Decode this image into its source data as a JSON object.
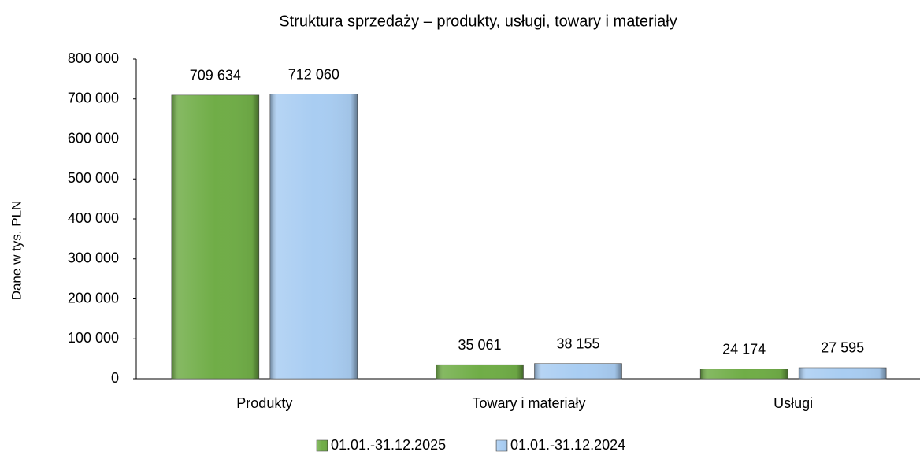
{
  "chart_data": {
    "type": "bar",
    "title": "Struktura sprzedaży – produkty, usługi, towary i materiały",
    "y_label": "Dane w tys. PLN",
    "categories": [
      "Produkty",
      "Towary i materiały",
      "Usługi"
    ],
    "series": [
      {
        "name": "01.01.-31.12.2025",
        "color": "#70ad47",
        "values": [
          709634,
          35061,
          24174
        ],
        "value_labels": [
          "709 634",
          "35 061",
          "24 174"
        ]
      },
      {
        "name": "01.01.-31.12.2024",
        "color": "#a9cdf2",
        "values": [
          712060,
          38155,
          27595
        ],
        "value_labels": [
          "712 060",
          "38 155",
          "27 595"
        ]
      }
    ],
    "ylim": [
      0,
      800000
    ],
    "yticks": [
      0,
      {
        "value": 100000,
        "label": "100 000"
      },
      {
        "value": 200000,
        "label": "200 000"
      },
      {
        "value": 300000,
        "label": "300 000"
      },
      {
        "value": 400000,
        "label": "400 000"
      },
      {
        "value": 500000,
        "label": "500 000"
      },
      {
        "value": 600000,
        "label": "600 000"
      },
      {
        "value": 700000,
        "label": "700 000"
      },
      {
        "value": 800000,
        "label": "800 000"
      }
    ],
    "grid": false,
    "legend": "bottom"
  }
}
